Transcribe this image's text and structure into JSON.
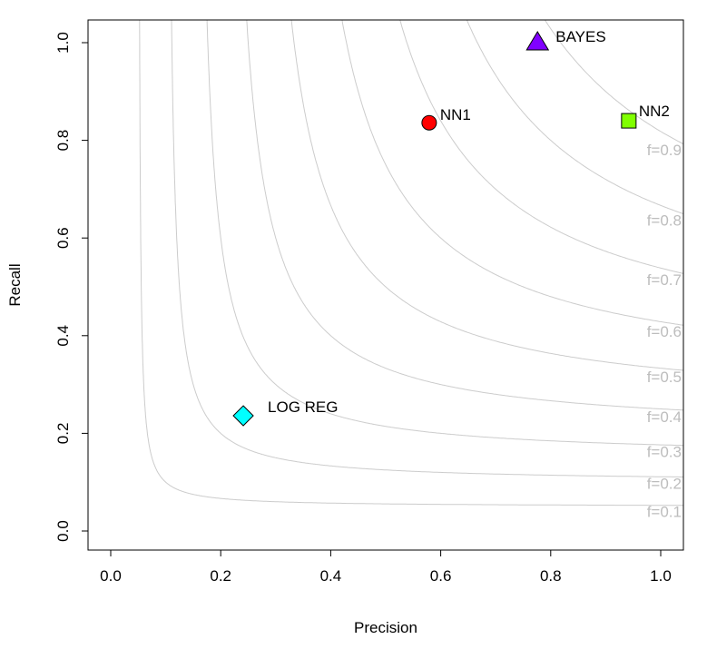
{
  "chart_data": {
    "type": "scatter",
    "title": "",
    "xlabel": "Precision",
    "ylabel": "Recall",
    "xlim": [
      0.0,
      1.0
    ],
    "ylim": [
      0.0,
      1.0
    ],
    "x_ticks": [
      "0.0",
      "0.2",
      "0.4",
      "0.6",
      "0.8",
      "1.0"
    ],
    "y_ticks": [
      "0.0",
      "0.2",
      "0.4",
      "0.6",
      "0.8",
      "1.0"
    ],
    "grid": false,
    "points": [
      {
        "label": "BAYES",
        "precision": 0.776,
        "recall": 1.0,
        "shape": "triangle",
        "color": "#8000FF"
      },
      {
        "label": "NN1",
        "precision": 0.579,
        "recall": 0.836,
        "shape": "circle",
        "color": "#FF0000"
      },
      {
        "label": "NN2",
        "precision": 0.942,
        "recall": 0.84,
        "shape": "square",
        "color": "#80FF00"
      },
      {
        "label": "LOG REG",
        "precision": 0.241,
        "recall": 0.236,
        "shape": "diamond",
        "color": "#00FFFF"
      }
    ],
    "f_contours": [
      {
        "f": 0.1,
        "label": "f=0.1"
      },
      {
        "f": 0.2,
        "label": "f=0.2"
      },
      {
        "f": 0.3,
        "label": "f=0.3"
      },
      {
        "f": 0.4,
        "label": "f=0.4"
      },
      {
        "f": 0.5,
        "label": "f=0.5"
      },
      {
        "f": 0.6,
        "label": "f=0.6"
      },
      {
        "f": 0.7,
        "label": "f=0.7"
      },
      {
        "f": 0.8,
        "label": "f=0.8"
      },
      {
        "f": 0.9,
        "label": "f=0.9"
      }
    ],
    "contour_color": "#cccccc"
  }
}
